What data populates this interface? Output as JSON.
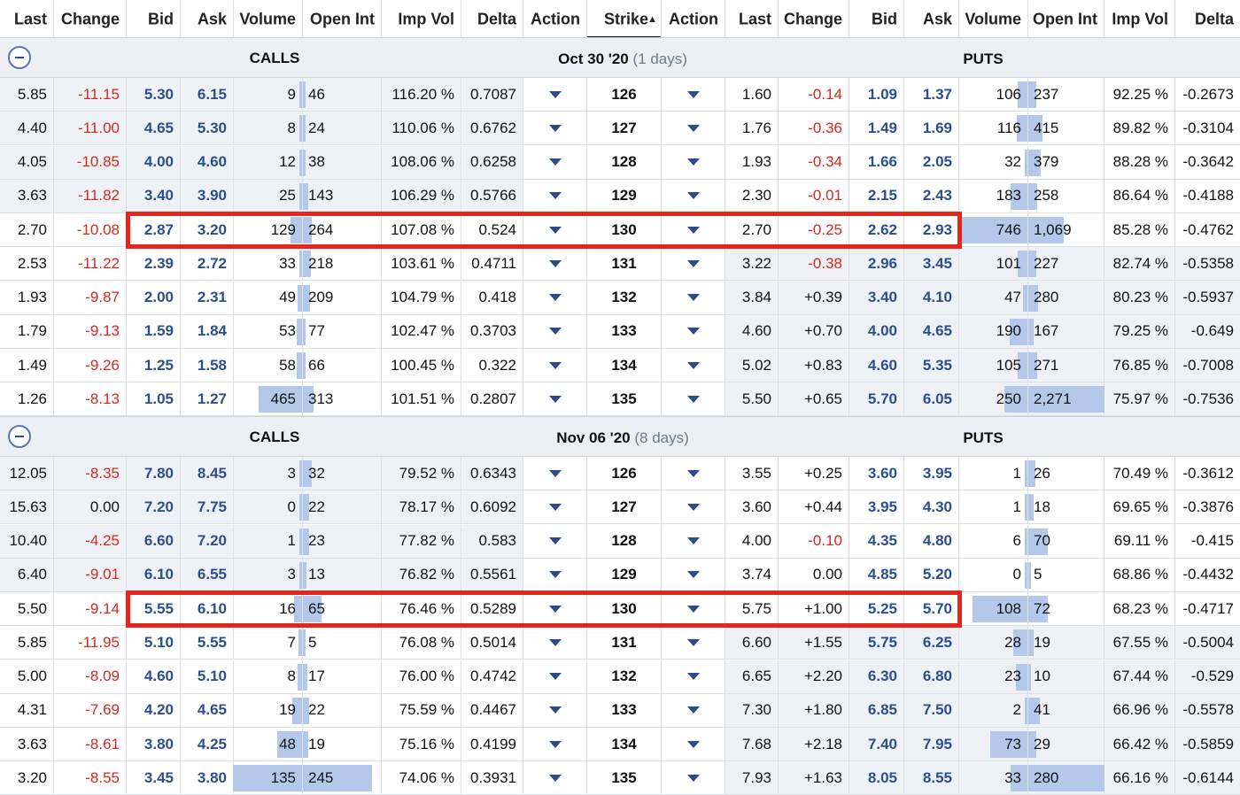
{
  "columns": [
    "Last",
    "Change",
    "Bid",
    "Ask",
    "Volume",
    "Open Int",
    "Imp Vol",
    "Delta",
    "Action",
    "Strike",
    "Action",
    "Last",
    "Change",
    "Bid",
    "Ask",
    "Volume",
    "Open Int",
    "Imp Vol",
    "Delta"
  ],
  "sort_indicator": "▲",
  "colors": {
    "accent_blue": "#2b4f8e",
    "negative": "#d32a1f",
    "bar": "#b4c8ea",
    "highlight": "#e3281b"
  },
  "sections": [
    {
      "calls_label": "CALLS",
      "puts_label": "PUTS",
      "expiry": "Oct 30 '20",
      "days": "(1 days)",
      "highlight_row": 4,
      "rows": [
        {
          "c": [
            "5.85",
            "-11.15",
            "5.30",
            "6.15",
            "9",
            "46",
            "116.20 %",
            "0.7087"
          ],
          "strike": "126",
          "p": [
            "1.60",
            "-0.14",
            "1.09",
            "1.37",
            "106",
            "237",
            "92.25 %",
            "-0.2673"
          ]
        },
        {
          "c": [
            "4.40",
            "-11.00",
            "4.65",
            "5.30",
            "8",
            "24",
            "110.06 %",
            "0.6762"
          ],
          "strike": "127",
          "p": [
            "1.76",
            "-0.36",
            "1.49",
            "1.69",
            "116",
            "415",
            "89.82 %",
            "-0.3104"
          ]
        },
        {
          "c": [
            "4.05",
            "-10.85",
            "4.00",
            "4.60",
            "12",
            "38",
            "108.06 %",
            "0.6258"
          ],
          "strike": "128",
          "p": [
            "1.93",
            "-0.34",
            "1.66",
            "2.05",
            "32",
            "379",
            "88.28 %",
            "-0.3642"
          ]
        },
        {
          "c": [
            "3.63",
            "-11.82",
            "3.40",
            "3.90",
            "25",
            "143",
            "106.29 %",
            "0.5766"
          ],
          "strike": "129",
          "p": [
            "2.30",
            "-0.01",
            "2.15",
            "2.43",
            "183",
            "258",
            "86.64 %",
            "-0.4188"
          ]
        },
        {
          "c": [
            "2.70",
            "-10.08",
            "2.87",
            "3.20",
            "129",
            "264",
            "107.08 %",
            "0.524"
          ],
          "strike": "130",
          "p": [
            "2.70",
            "-0.25",
            "2.62",
            "2.93",
            "746",
            "1,069",
            "85.28 %",
            "-0.4762"
          ]
        },
        {
          "c": [
            "2.53",
            "-11.22",
            "2.39",
            "2.72",
            "33",
            "218",
            "103.61 %",
            "0.4711"
          ],
          "strike": "131",
          "p": [
            "3.22",
            "-0.38",
            "2.96",
            "3.45",
            "101",
            "227",
            "82.74 %",
            "-0.5358"
          ]
        },
        {
          "c": [
            "1.93",
            "-9.87",
            "2.00",
            "2.31",
            "49",
            "209",
            "104.79 %",
            "0.418"
          ],
          "strike": "132",
          "p": [
            "3.84",
            "+0.39",
            "3.40",
            "4.10",
            "47",
            "280",
            "80.23 %",
            "-0.5937"
          ]
        },
        {
          "c": [
            "1.79",
            "-9.13",
            "1.59",
            "1.84",
            "53",
            "77",
            "102.47 %",
            "0.3703"
          ],
          "strike": "133",
          "p": [
            "4.60",
            "+0.70",
            "4.00",
            "4.65",
            "190",
            "167",
            "79.25 %",
            "-0.649"
          ]
        },
        {
          "c": [
            "1.49",
            "-9.26",
            "1.25",
            "1.58",
            "58",
            "66",
            "100.45 %",
            "0.322"
          ],
          "strike": "134",
          "p": [
            "5.02",
            "+0.83",
            "4.60",
            "5.35",
            "105",
            "271",
            "76.85 %",
            "-0.7008"
          ]
        },
        {
          "c": [
            "1.26",
            "-8.13",
            "1.05",
            "1.27",
            "465",
            "313",
            "101.51 %",
            "0.2807"
          ],
          "strike": "135",
          "p": [
            "5.50",
            "+0.65",
            "5.70",
            "6.05",
            "250",
            "2,271",
            "75.97 %",
            "-0.7536"
          ]
        }
      ]
    },
    {
      "calls_label": "CALLS",
      "puts_label": "PUTS",
      "expiry": "Nov 06 '20",
      "days": "(8 days)",
      "highlight_row": 4,
      "rows": [
        {
          "c": [
            "12.05",
            "-8.35",
            "7.80",
            "8.45",
            "3",
            "32",
            "79.52 %",
            "0.6343"
          ],
          "strike": "126",
          "p": [
            "3.55",
            "+0.25",
            "3.60",
            "3.95",
            "1",
            "26",
            "70.49 %",
            "-0.3612"
          ]
        },
        {
          "c": [
            "15.63",
            "0.00",
            "7.20",
            "7.75",
            "0",
            "22",
            "78.17 %",
            "0.6092"
          ],
          "strike": "127",
          "p": [
            "3.60",
            "+0.44",
            "3.95",
            "4.30",
            "1",
            "18",
            "69.65 %",
            "-0.3876"
          ]
        },
        {
          "c": [
            "10.40",
            "-4.25",
            "6.60",
            "7.20",
            "1",
            "23",
            "77.82 %",
            "0.583"
          ],
          "strike": "128",
          "p": [
            "4.00",
            "-0.10",
            "4.35",
            "4.80",
            "6",
            "70",
            "69.11 %",
            "-0.415"
          ]
        },
        {
          "c": [
            "6.40",
            "-9.01",
            "6.10",
            "6.55",
            "3",
            "13",
            "76.82 %",
            "0.5561"
          ],
          "strike": "129",
          "p": [
            "3.74",
            "0.00",
            "4.85",
            "5.20",
            "0",
            "5",
            "68.86 %",
            "-0.4432"
          ]
        },
        {
          "c": [
            "5.50",
            "-9.14",
            "5.55",
            "6.10",
            "16",
            "65",
            "76.46 %",
            "0.5289"
          ],
          "strike": "130",
          "p": [
            "5.75",
            "+1.00",
            "5.25",
            "5.70",
            "108",
            "72",
            "68.23 %",
            "-0.4717"
          ]
        },
        {
          "c": [
            "5.85",
            "-11.95",
            "5.10",
            "5.55",
            "7",
            "5",
            "76.08 %",
            "0.5014"
          ],
          "strike": "131",
          "p": [
            "6.60",
            "+1.55",
            "5.75",
            "6.25",
            "28",
            "19",
            "67.55 %",
            "-0.5004"
          ]
        },
        {
          "c": [
            "5.00",
            "-8.09",
            "4.60",
            "5.10",
            "8",
            "17",
            "76.00 %",
            "0.4742"
          ],
          "strike": "132",
          "p": [
            "6.65",
            "+2.20",
            "6.30",
            "6.80",
            "23",
            "10",
            "67.44 %",
            "-0.529"
          ]
        },
        {
          "c": [
            "4.31",
            "-7.69",
            "4.20",
            "4.65",
            "19",
            "22",
            "75.59 %",
            "0.4467"
          ],
          "strike": "133",
          "p": [
            "7.30",
            "+1.80",
            "6.85",
            "7.50",
            "2",
            "41",
            "66.96 %",
            "-0.5578"
          ]
        },
        {
          "c": [
            "3.63",
            "-8.61",
            "3.80",
            "4.25",
            "48",
            "19",
            "75.16 %",
            "0.4199"
          ],
          "strike": "134",
          "p": [
            "7.68",
            "+2.18",
            "7.40",
            "7.95",
            "73",
            "29",
            "66.42 %",
            "-0.5859"
          ]
        },
        {
          "c": [
            "3.20",
            "-8.55",
            "3.45",
            "3.80",
            "135",
            "245",
            "74.06 %",
            "0.3931"
          ],
          "strike": "135",
          "p": [
            "7.93",
            "+1.63",
            "8.05",
            "8.55",
            "33",
            "280",
            "66.16 %",
            "-0.6144"
          ]
        }
      ]
    }
  ]
}
